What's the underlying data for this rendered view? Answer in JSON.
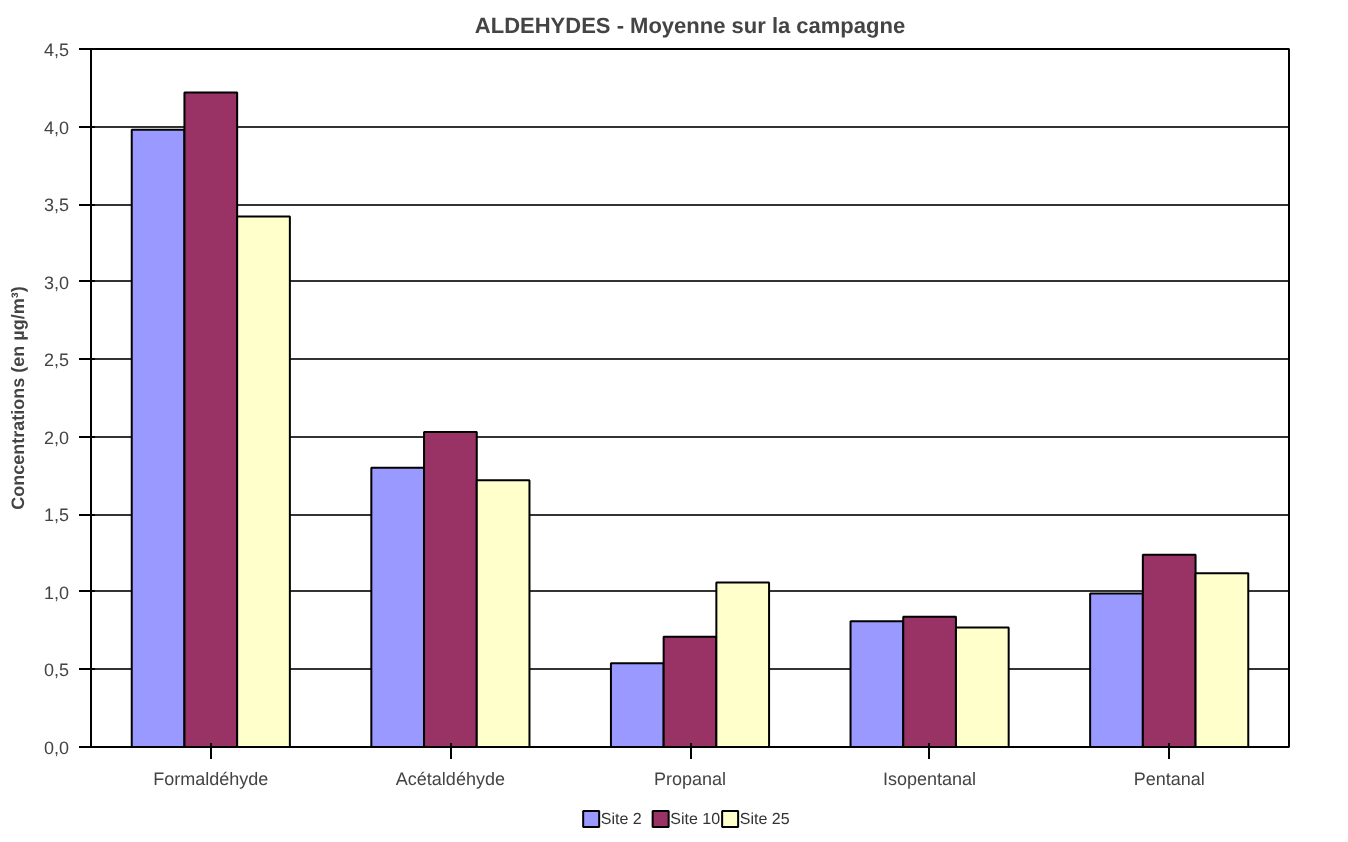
{
  "chart_data": {
    "type": "bar",
    "title": "ALDEHYDES - Moyenne sur la campagne",
    "ylabel": "Concentrations (en µg/m³)",
    "categories": [
      "Formaldéhyde",
      "Acétaldéhyde",
      "Propanal",
      "Isopentanal",
      "Pentanal"
    ],
    "series": [
      {
        "name": "Site 2",
        "color": "#9999ff",
        "values": [
          3.98,
          1.8,
          0.54,
          0.81,
          0.99
        ]
      },
      {
        "name": "Site 10",
        "color": "#993366",
        "values": [
          4.22,
          2.03,
          0.71,
          0.84,
          1.24
        ]
      },
      {
        "name": "Site 25",
        "color": "#ffffcc",
        "values": [
          3.42,
          1.72,
          1.06,
          0.77,
          1.12
        ]
      }
    ],
    "ylim": [
      0,
      4.5
    ],
    "yticks": [
      {
        "value": 0,
        "label": "0,0"
      },
      {
        "value": 0.5,
        "label": "0,5"
      },
      {
        "value": 1,
        "label": "1,0"
      },
      {
        "value": 1.5,
        "label": "1,5"
      },
      {
        "value": 2,
        "label": "2,0"
      },
      {
        "value": 2.5,
        "label": "2,5"
      },
      {
        "value": 3,
        "label": "3,0"
      },
      {
        "value": 3.5,
        "label": "3,5"
      },
      {
        "value": 4,
        "label": "4,0"
      },
      {
        "value": 4.5,
        "label": "4,5"
      }
    ],
    "grid": "y",
    "legend": "bottom"
  }
}
